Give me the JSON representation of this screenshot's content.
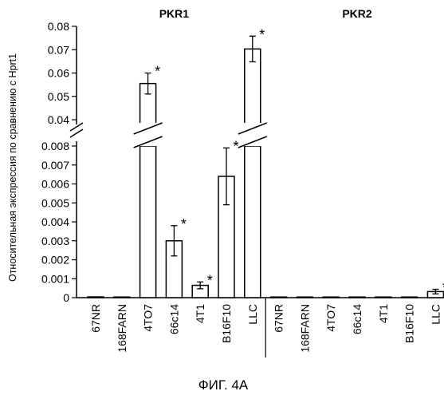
{
  "chart_data": {
    "type": "bar",
    "groups": [
      {
        "name": "PKR1",
        "categories": [
          "67NR",
          "168FARN",
          "4TO7",
          "66c14",
          "4T1",
          "B16F10",
          "LLC"
        ],
        "values": [
          4e-05,
          2e-05,
          0.0555,
          0.003,
          0.00065,
          0.0064,
          0.0703
        ],
        "errors": [
          0,
          0,
          0.0045,
          0.0008,
          0.00018,
          0.0015,
          0.0055
        ],
        "significant": [
          false,
          false,
          true,
          true,
          true,
          true,
          true
        ]
      },
      {
        "name": "PKR2",
        "categories": [
          "67NR",
          "168FARN",
          "4TO7",
          "66c14",
          "4T1",
          "B16F10",
          "LLC"
        ],
        "values": [
          0,
          0,
          0,
          0,
          0,
          0,
          0.00032
        ],
        "errors": [
          0,
          0,
          0,
          0,
          0,
          0,
          0.00012
        ],
        "significant": [
          false,
          false,
          false,
          false,
          false,
          false,
          true
        ]
      }
    ],
    "ylabel": "Относительная экспрессия по сравнению с Hprt1",
    "y_axis_break": true,
    "ylim_lower": [
      0,
      0.008
    ],
    "ylim_upper": [
      0.04,
      0.08
    ],
    "yticks_lower": [
      "0",
      "0.001",
      "0.002",
      "0.003",
      "0.004",
      "0.005",
      "0.006",
      "0.007",
      "0.008"
    ],
    "yticks_upper": [
      "0.04",
      "0.05",
      "0.06",
      "0.07",
      "0.08"
    ],
    "significance_marker": "*",
    "grid": false,
    "legend": "none",
    "caption": "ФИГ. 4А"
  }
}
